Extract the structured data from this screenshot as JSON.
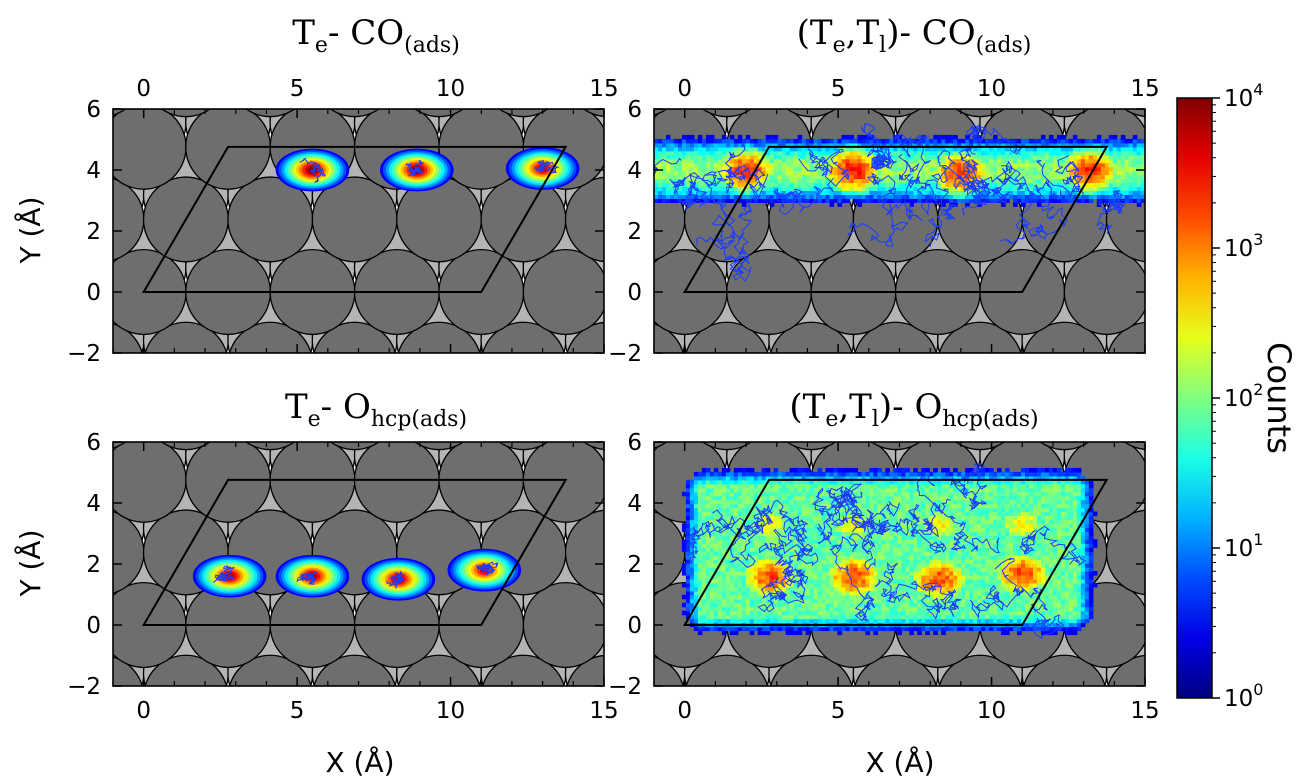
{
  "chart_data": [
    {
      "type": "heatmap",
      "title": {
        "main": "T",
        "sub1": "e",
        "mid": "- CO",
        "sub2": "(ads)"
      },
      "xlabel": "",
      "ylabel": "Y (Å)",
      "xlim": [
        -1,
        15
      ],
      "ylim": [
        -2,
        6
      ],
      "xticks": [
        0,
        5,
        10,
        15
      ],
      "yticks": [
        -2,
        0,
        2,
        4,
        6
      ],
      "xtick_labels": [
        "0",
        "5",
        "10",
        "15"
      ],
      "ytick_labels": [
        "−2",
        "0",
        "2",
        "4",
        "6"
      ],
      "xtick_position": "top",
      "spread": "localized",
      "hotspots": [
        {
          "x": 5.5,
          "y": 4.0,
          "peak": 4.0
        },
        {
          "x": 8.9,
          "y": 4.0,
          "peak": 4.0
        },
        {
          "x": 13.0,
          "y": 4.05,
          "peak": 3.7
        }
      ]
    },
    {
      "type": "heatmap",
      "title": {
        "main": "(T",
        "sub1": "e",
        "mid": ",T",
        "sub1b": "l",
        "mid2": ")- CO",
        "sub2": "(ads)"
      },
      "xlabel": "",
      "ylabel": "",
      "xlim": [
        -1,
        15
      ],
      "ylim": [
        -2,
        6
      ],
      "xticks": [
        0,
        5,
        10,
        15
      ],
      "yticks": [
        -2,
        0,
        2,
        4,
        6
      ],
      "xtick_labels": [
        "0",
        "5",
        "10",
        "15"
      ],
      "ytick_labels": [
        "−2",
        "0",
        "2",
        "4",
        "6"
      ],
      "xtick_position": "top",
      "spread": "band",
      "band": {
        "y": 4.0,
        "width": 1.2,
        "level": 2.1
      },
      "hotspots": [
        {
          "x": 2.0,
          "y": 4.0,
          "peak": 3.3
        },
        {
          "x": 5.5,
          "y": 4.0,
          "peak": 3.4
        },
        {
          "x": 9.0,
          "y": 3.9,
          "peak": 3.3
        },
        {
          "x": 13.2,
          "y": 4.0,
          "peak": 3.3
        }
      ]
    },
    {
      "type": "heatmap",
      "title": {
        "main": "T",
        "sub1": "e",
        "mid": "- O",
        "sub2": "hcp(ads)"
      },
      "xlabel": "X (Å)",
      "ylabel": "Y (Å)",
      "xlim": [
        -1,
        15
      ],
      "ylim": [
        -2,
        6
      ],
      "xticks": [
        0,
        5,
        10,
        15
      ],
      "yticks": [
        -2,
        0,
        2,
        4,
        6
      ],
      "xtick_labels": [
        "0",
        "5",
        "10",
        "15"
      ],
      "ytick_labels": [
        "−2",
        "0",
        "2",
        "4",
        "6"
      ],
      "xtick_position": "bottom",
      "spread": "localized",
      "hotspots": [
        {
          "x": 2.8,
          "y": 1.6,
          "peak": 3.8
        },
        {
          "x": 5.5,
          "y": 1.6,
          "peak": 3.8
        },
        {
          "x": 8.3,
          "y": 1.5,
          "peak": 3.8
        },
        {
          "x": 11.1,
          "y": 1.8,
          "peak": 3.6
        }
      ]
    },
    {
      "type": "heatmap",
      "title": {
        "main": "(T",
        "sub1": "e",
        "mid": ",T",
        "sub1b": "l",
        "mid2": ")- O",
        "sub2": "hcp(ads)"
      },
      "xlabel": "X (Å)",
      "ylabel": "",
      "xlim": [
        -1,
        15
      ],
      "ylim": [
        -2,
        6
      ],
      "xticks": [
        0,
        5,
        10,
        15
      ],
      "yticks": [
        -2,
        0,
        2,
        4,
        6
      ],
      "xtick_labels": [
        "0",
        "5",
        "10",
        "15"
      ],
      "ytick_labels": [
        "−2",
        "0",
        "2",
        "4",
        "6"
      ],
      "xtick_position": "bottom",
      "spread": "sheet",
      "sheet": {
        "xmin": 0.5,
        "xmax": 12.8,
        "ymin": 0.3,
        "ymax": 4.6,
        "level": 1.9
      },
      "hotspots": [
        {
          "x": 2.8,
          "y": 1.6,
          "peak": 3.2
        },
        {
          "x": 5.5,
          "y": 1.6,
          "peak": 3.2
        },
        {
          "x": 8.3,
          "y": 1.5,
          "peak": 3.2
        },
        {
          "x": 11.0,
          "y": 1.7,
          "peak": 3.2
        },
        {
          "x": 2.8,
          "y": 3.3,
          "peak": 2.5
        },
        {
          "x": 5.5,
          "y": 3.3,
          "peak": 2.5
        },
        {
          "x": 8.3,
          "y": 3.3,
          "peak": 2.5
        },
        {
          "x": 11.0,
          "y": 3.3,
          "peak": 2.5
        }
      ]
    }
  ],
  "lattice": {
    "cell_vertices": [
      [
        0,
        0
      ],
      [
        11.0,
        0
      ],
      [
        13.75,
        4.76
      ],
      [
        2.75,
        4.76
      ]
    ],
    "atom_radius": 1.38,
    "top_layer_color": "#6e6e6e",
    "second_layer_color": "#b4b4b4"
  },
  "colorbar": {
    "label": "Counts",
    "scale": "log",
    "min_exponent": 0,
    "max_exponent": 4,
    "tick_labels": [
      {
        "base": "10",
        "exp": "0"
      },
      {
        "base": "10",
        "exp": "1"
      },
      {
        "base": "10",
        "exp": "2"
      },
      {
        "base": "10",
        "exp": "3"
      },
      {
        "base": "10",
        "exp": "4"
      }
    ],
    "colormap": "jet"
  },
  "colors": {
    "cell_outline": "#000000",
    "trajectory": "#1a3cff"
  }
}
